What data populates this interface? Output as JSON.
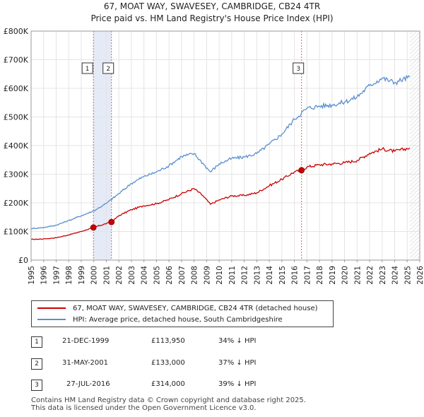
{
  "chart_data": {
    "type": "line",
    "title": "67, MOAT WAY, SWAVESEY, CAMBRIDGE, CB24 4TR",
    "subtitle": "Price paid vs. HM Land Registry's House Price Index (HPI)",
    "xlim": [
      1995,
      2026
    ],
    "ylim": [
      0,
      800000
    ],
    "x_ticks": [
      "1995",
      "1996",
      "1997",
      "1998",
      "1999",
      "2000",
      "2001",
      "2002",
      "2003",
      "2004",
      "2005",
      "2006",
      "2007",
      "2008",
      "2009",
      "2010",
      "2011",
      "2012",
      "2013",
      "2014",
      "2015",
      "2016",
      "2017",
      "2018",
      "2019",
      "2020",
      "2021",
      "2022",
      "2023",
      "2024",
      "2025",
      "2026"
    ],
    "y_ticks": [
      {
        "value": 0,
        "label": "£0"
      },
      {
        "value": 100000,
        "label": "£100K"
      },
      {
        "value": 200000,
        "label": "£200K"
      },
      {
        "value": 300000,
        "label": "£300K"
      },
      {
        "value": 400000,
        "label": "£400K"
      },
      {
        "value": 500000,
        "label": "£500K"
      },
      {
        "value": 600000,
        "label": "£600K"
      },
      {
        "value": 700000,
        "label": "£700K"
      },
      {
        "value": 800000,
        "label": "£800K"
      }
    ],
    "series": [
      {
        "name": "67, MOAT WAY, SWAVESEY, CAMBRIDGE, CB24 4TR (detached house)",
        "color": "#cc0000",
        "x": [
          1995,
          1996,
          1997,
          1998,
          1999,
          1999.97,
          2001.41,
          2002,
          2003,
          2004,
          2005,
          2006,
          2007,
          2008,
          2008.7,
          2009.3,
          2010,
          2011,
          2012,
          2013,
          2014,
          2015,
          2016,
          2016.57,
          2017,
          2018,
          2019,
          2020,
          2021,
          2022,
          2023,
          2024,
          2025.2
        ],
        "values": [
          72000,
          74000,
          78000,
          88000,
          100000,
          113950,
          133000,
          155000,
          176000,
          190000,
          197000,
          212000,
          232000,
          250000,
          225000,
          195000,
          210000,
          224000,
          226000,
          235000,
          260000,
          282000,
          308000,
          314000,
          325000,
          333000,
          336000,
          340000,
          348000,
          373000,
          388000,
          380000,
          392000
        ]
      },
      {
        "name": "HPI: Average price, detached house, South Cambridgeshire",
        "color": "#5a8fd0",
        "x": [
          1995,
          1996,
          1997,
          1998,
          1999,
          2000,
          2001,
          2002,
          2003,
          2004,
          2005,
          2006,
          2007,
          2008,
          2008.7,
          2009.3,
          2010,
          2011,
          2012,
          2013,
          2014,
          2015,
          2016,
          2017,
          2018,
          2019,
          2020,
          2021,
          2022,
          2023,
          2024,
          2025.2
        ],
        "values": [
          110000,
          114000,
          122000,
          138000,
          155000,
          172000,
          198000,
          232000,
          268000,
          292000,
          308000,
          330000,
          362000,
          372000,
          338000,
          308000,
          336000,
          355000,
          360000,
          372000,
          405000,
          440000,
          492000,
          530000,
          538000,
          542000,
          552000,
          570000,
          610000,
          636000,
          620000,
          640000
        ]
      }
    ],
    "sales": [
      {
        "label": "1",
        "x": 1999.97,
        "price": 113950
      },
      {
        "label": "2",
        "x": 2001.41,
        "price": 133000
      },
      {
        "label": "3",
        "x": 2016.57,
        "price": 314000
      }
    ],
    "forecast_start": 2025.2
  },
  "legend": {
    "property": "67, MOAT WAY, SWAVESEY, CAMBRIDGE, CB24 4TR (detached house)",
    "hpi": "HPI: Average price, detached house, South Cambridgeshire"
  },
  "transactions": [
    {
      "num": "1",
      "date": "21-DEC-1999",
      "price": "£113,950",
      "hpi": "34% ↓ HPI"
    },
    {
      "num": "2",
      "date": "31-MAY-2001",
      "price": "£133,000",
      "hpi": "37% ↓ HPI"
    },
    {
      "num": "3",
      "date": "27-JUL-2016",
      "price": "£314,000",
      "hpi": "39% ↓ HPI"
    }
  ],
  "footer": {
    "line1": "Contains HM Land Registry data © Crown copyright and database right 2025.",
    "line2": "This data is licensed under the Open Government Licence v3.0."
  }
}
